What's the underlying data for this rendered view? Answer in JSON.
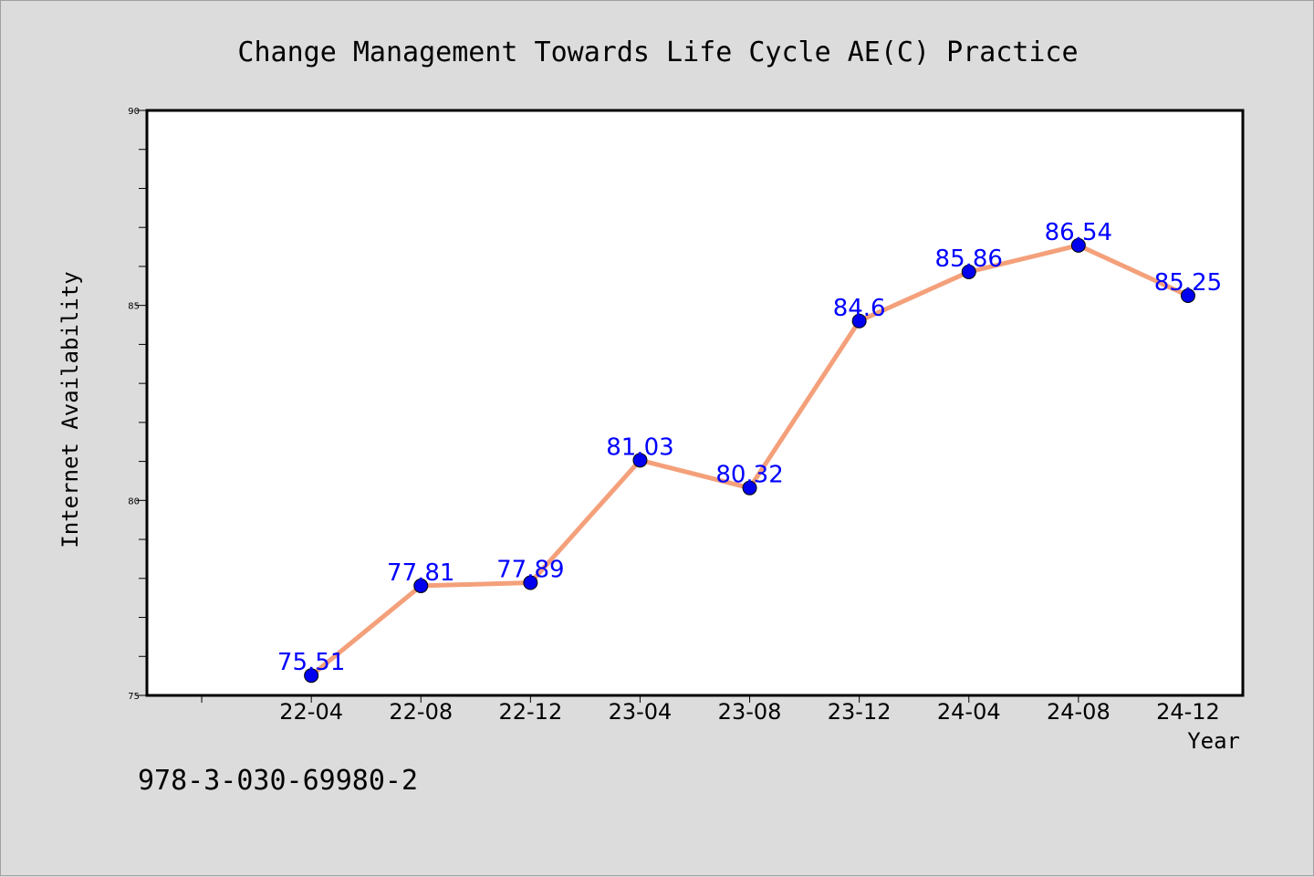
{
  "chart_data": {
    "type": "line",
    "title": "Change Management Towards Life Cycle AE(C) Practice",
    "xlabel": "Year",
    "ylabel": "Internet Availability",
    "categories": [
      "22-04",
      "22-08",
      "22-12",
      "23-04",
      "23-08",
      "23-12",
      "24-04",
      "24-08",
      "24-12"
    ],
    "series": [
      {
        "values": [
          75.51,
          77.81,
          77.89,
          81.03,
          80.32,
          84.6,
          85.86,
          86.54,
          85.25
        ]
      }
    ],
    "data_labels": [
      "75.51",
      "77.81",
      "77.89",
      "81.03",
      "80.32",
      "84.6",
      "85.86",
      "86.54",
      "85.25"
    ],
    "ylim": [
      75,
      90
    ],
    "yticks": [
      75,
      80,
      85,
      90
    ],
    "y_minor_step": 1,
    "x_slots": 10,
    "grid": false,
    "legend": "none",
    "colors": {
      "line": "#f4a07a",
      "marker": "#0000ee",
      "label": "#0000ff",
      "plot_bg": "#ffffff",
      "page_bg": "#dcdcdc"
    }
  },
  "footnote": "978-3-030-69980-2"
}
